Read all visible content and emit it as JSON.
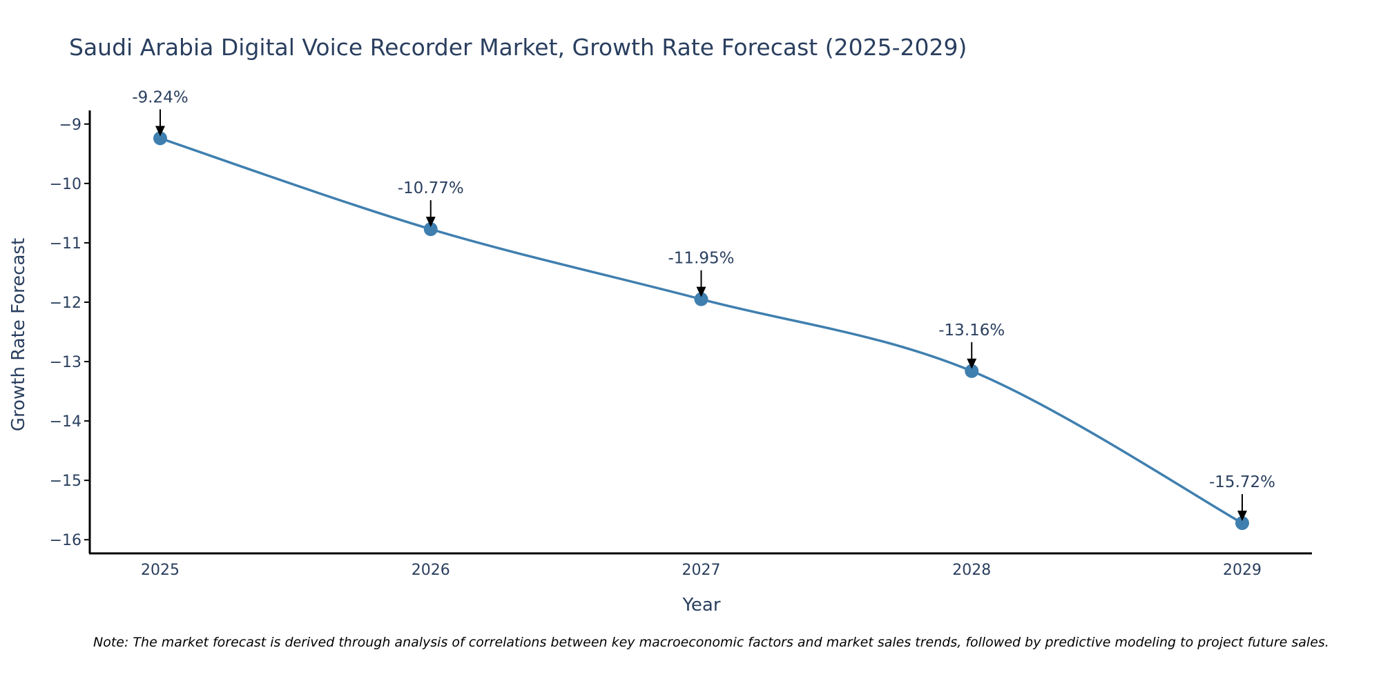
{
  "chart_data": {
    "type": "line",
    "title": "Saudi Arabia Digital Voice Recorder Market, Growth Rate Forecast (2025-2029)",
    "xlabel": "Year",
    "ylabel": "Growth Rate Forecast",
    "categories": [
      "2025",
      "2026",
      "2027",
      "2028",
      "2029"
    ],
    "values": [
      -9.24,
      -10.77,
      -11.95,
      -13.16,
      -15.72
    ],
    "data_labels": [
      "-9.24%",
      "-10.77%",
      "-11.95%",
      "-13.16%",
      "-15.72%"
    ],
    "yticks": [
      -9,
      -10,
      -11,
      -12,
      -13,
      -14,
      -15,
      -16
    ],
    "ytick_labels": [
      "−9",
      "−10",
      "−11",
      "−12",
      "−13",
      "−14",
      "−15",
      "−16"
    ],
    "ylim": [
      -16.23,
      -8.77
    ],
    "grid": false,
    "line_shape": "spline"
  },
  "colors": {
    "line": "#3f7faf",
    "marker": "#3f7faf",
    "text": "#2a3f5f",
    "axis": "#000000",
    "arrow": "#000000"
  },
  "note": "Note: The market forecast is derived through analysis of correlations between key macroeconomic factors and market sales trends, followed by predictive modeling to project future sales."
}
